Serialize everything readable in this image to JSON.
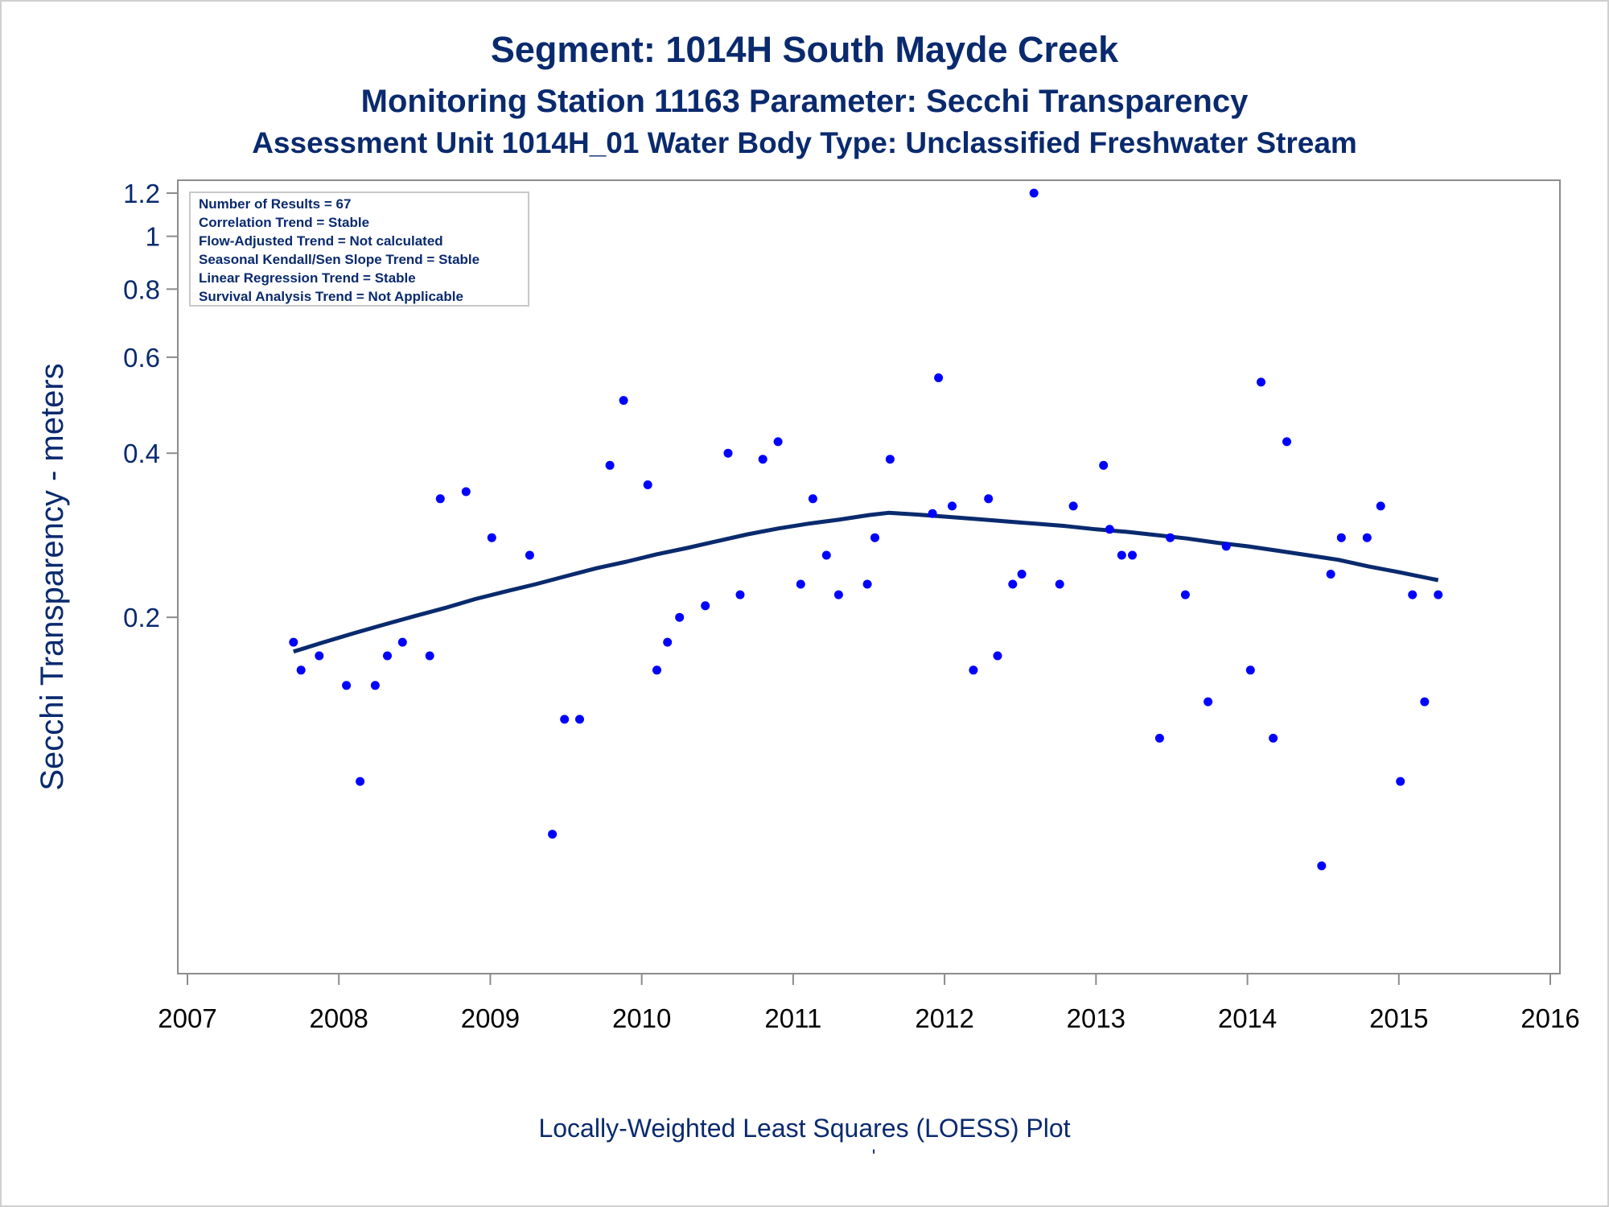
{
  "chart_data": {
    "type": "scatter",
    "title": "Segment: 1014H  South Mayde Creek",
    "subtitle": "Monitoring Station 11163 Parameter: Secchi Transparency",
    "subtitle2": "Assessment Unit 1014H_01   Water Body Type: Unclassified Freshwater Stream",
    "ylabel": "Secchi Transparency - meters",
    "xlabel": "",
    "footer": "Locally-Weighted Least Squares (LOESS) Plot",
    "footer_mark": "'",
    "y_scale": "log",
    "xlim": [
      2007,
      2016
    ],
    "ylim": [
      0.045,
      1.25
    ],
    "x_ticks": [
      2007,
      2008,
      2009,
      2010,
      2011,
      2012,
      2013,
      2014,
      2015,
      2016
    ],
    "y_ticks": [
      0.2,
      0.4,
      0.6,
      0.8,
      1,
      1.2
    ],
    "y_tick_labels": [
      "0.2",
      "0.4",
      "0.6",
      "0.8",
      "1",
      "1.2"
    ],
    "legend_placement": "top-left",
    "grid": false,
    "stats_box": [
      "Number of Results = 67",
      "Correlation Trend = Stable",
      "Flow-Adjusted Trend = Not calculated",
      "Seasonal Kendall/Sen Slope Trend = Stable",
      "Linear Regression Trend = Stable",
      "Survival Analysis Trend = Not Applicable"
    ],
    "series": [
      {
        "kind": "points",
        "color": "#0000ff",
        "points": [
          [
            2007.7,
            0.18
          ],
          [
            2007.75,
            0.16
          ],
          [
            2007.87,
            0.17
          ],
          [
            2008.05,
            0.15
          ],
          [
            2008.14,
            0.1
          ],
          [
            2008.24,
            0.15
          ],
          [
            2008.32,
            0.17
          ],
          [
            2008.42,
            0.18
          ],
          [
            2008.6,
            0.17
          ],
          [
            2008.67,
            0.33
          ],
          [
            2008.84,
            0.34
          ],
          [
            2009.01,
            0.28
          ],
          [
            2009.26,
            0.26
          ],
          [
            2009.41,
            0.08
          ],
          [
            2009.49,
            0.13
          ],
          [
            2009.59,
            0.13
          ],
          [
            2009.79,
            0.38
          ],
          [
            2009.88,
            0.5
          ],
          [
            2010.04,
            0.35
          ],
          [
            2010.1,
            0.16
          ],
          [
            2010.17,
            0.18
          ],
          [
            2010.25,
            0.2
          ],
          [
            2010.42,
            0.21
          ],
          [
            2010.57,
            0.4
          ],
          [
            2010.65,
            0.22
          ],
          [
            2010.8,
            0.39
          ],
          [
            2010.9,
            0.42
          ],
          [
            2011.05,
            0.23
          ],
          [
            2011.13,
            0.33
          ],
          [
            2011.22,
            0.26
          ],
          [
            2011.3,
            0.22
          ],
          [
            2011.49,
            0.23
          ],
          [
            2011.54,
            0.28
          ],
          [
            2011.64,
            0.39
          ],
          [
            2011.92,
            0.31
          ],
          [
            2011.96,
            0.55
          ],
          [
            2012.05,
            0.32
          ],
          [
            2012.19,
            0.16
          ],
          [
            2012.29,
            0.33
          ],
          [
            2012.35,
            0.17
          ],
          [
            2012.45,
            0.23
          ],
          [
            2012.51,
            0.24
          ],
          [
            2012.59,
            1.2
          ],
          [
            2012.76,
            0.23
          ],
          [
            2012.85,
            0.32
          ],
          [
            2013.05,
            0.38
          ],
          [
            2013.09,
            0.29
          ],
          [
            2013.17,
            0.26
          ],
          [
            2013.24,
            0.26
          ],
          [
            2013.42,
            0.12
          ],
          [
            2013.49,
            0.28
          ],
          [
            2013.59,
            0.22
          ],
          [
            2013.74,
            0.14
          ],
          [
            2013.86,
            0.27
          ],
          [
            2014.02,
            0.16
          ],
          [
            2014.09,
            0.54
          ],
          [
            2014.17,
            0.12
          ],
          [
            2014.26,
            0.42
          ],
          [
            2014.49,
            0.07
          ],
          [
            2014.55,
            0.24
          ],
          [
            2014.62,
            0.28
          ],
          [
            2014.79,
            0.28
          ],
          [
            2014.88,
            0.32
          ],
          [
            2015.01,
            0.1
          ],
          [
            2015.09,
            0.22
          ],
          [
            2015.17,
            0.14
          ],
          [
            2015.26,
            0.22
          ]
        ]
      },
      {
        "kind": "loess_line",
        "color": "#0a2a6e",
        "points": [
          [
            2007.7,
            0.173
          ],
          [
            2007.9,
            0.18
          ],
          [
            2008.1,
            0.187
          ],
          [
            2008.3,
            0.194
          ],
          [
            2008.5,
            0.201
          ],
          [
            2008.7,
            0.208
          ],
          [
            2008.9,
            0.216
          ],
          [
            2009.1,
            0.223
          ],
          [
            2009.3,
            0.23
          ],
          [
            2009.5,
            0.238
          ],
          [
            2009.7,
            0.246
          ],
          [
            2009.9,
            0.253
          ],
          [
            2010.1,
            0.261
          ],
          [
            2010.3,
            0.268
          ],
          [
            2010.5,
            0.276
          ],
          [
            2010.7,
            0.284
          ],
          [
            2010.9,
            0.291
          ],
          [
            2011.1,
            0.297
          ],
          [
            2011.3,
            0.302
          ],
          [
            2011.5,
            0.308
          ],
          [
            2011.63,
            0.311
          ],
          [
            2011.8,
            0.309
          ],
          [
            2012.0,
            0.306
          ],
          [
            2012.2,
            0.303
          ],
          [
            2012.4,
            0.3
          ],
          [
            2012.6,
            0.297
          ],
          [
            2012.8,
            0.294
          ],
          [
            2013.0,
            0.29
          ],
          [
            2013.2,
            0.287
          ],
          [
            2013.4,
            0.283
          ],
          [
            2013.6,
            0.279
          ],
          [
            2013.8,
            0.274
          ],
          [
            2014.0,
            0.27
          ],
          [
            2014.2,
            0.265
          ],
          [
            2014.4,
            0.26
          ],
          [
            2014.6,
            0.255
          ],
          [
            2014.8,
            0.248
          ],
          [
            2015.0,
            0.242
          ],
          [
            2015.26,
            0.234
          ]
        ]
      }
    ]
  }
}
